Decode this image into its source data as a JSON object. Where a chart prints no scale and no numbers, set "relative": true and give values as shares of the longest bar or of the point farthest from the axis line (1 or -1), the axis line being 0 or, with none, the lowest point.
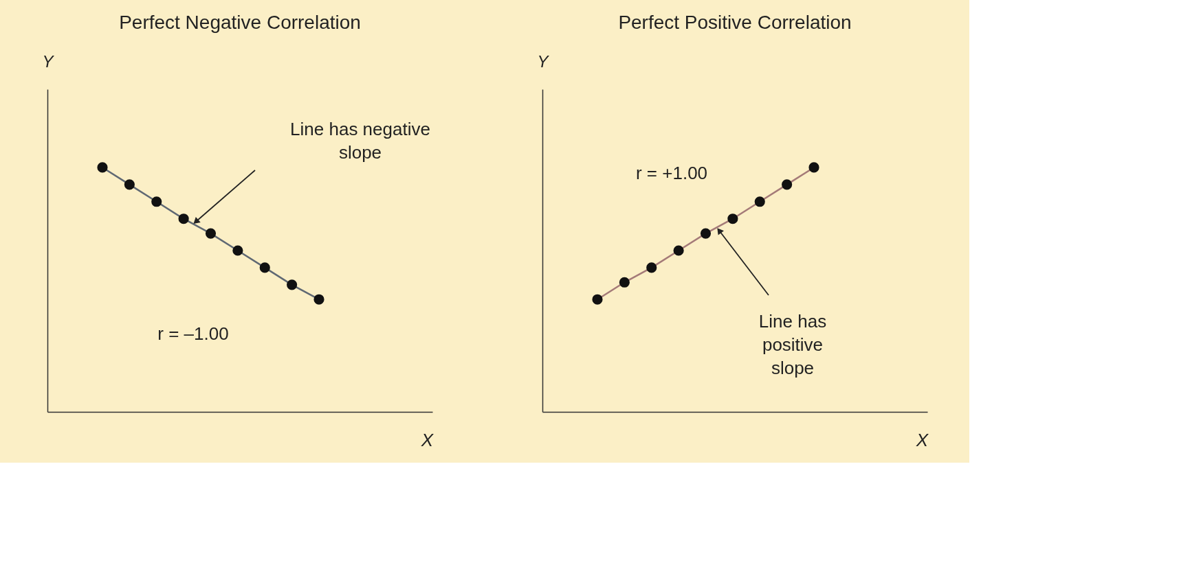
{
  "chart_data": [
    {
      "type": "line",
      "title": "Perfect Negative Correlation",
      "xlabel": "X",
      "ylabel": "Y",
      "relative": true,
      "marker": "circle",
      "line_style": "solid",
      "grid": false,
      "tick_labels": false,
      "categories": [
        null,
        null,
        null,
        null,
        null,
        null,
        null,
        null,
        null
      ],
      "series": [
        {
          "color": "#5f6873",
          "values": [
            1,
            0.93,
            0.86,
            0.79,
            0.73,
            0.66,
            0.59,
            0.52,
            0.46
          ]
        }
      ],
      "annotations": [
        "Line has negative slope",
        "r = –1.00"
      ]
    },
    {
      "type": "line",
      "title": "Perfect Positive Correlation",
      "xlabel": "X",
      "ylabel": "Y",
      "relative": true,
      "marker": "circle",
      "line_style": "solid",
      "grid": false,
      "tick_labels": false,
      "categories": [
        null,
        null,
        null,
        null,
        null,
        null,
        null,
        null,
        null
      ],
      "series": [
        {
          "color": "#a47a78",
          "values": [
            0.46,
            0.53,
            0.59,
            0.66,
            0.73,
            0.79,
            0.86,
            0.93,
            1
          ]
        }
      ],
      "annotations": [
        "Line has positive slope",
        "r = +1.00"
      ]
    }
  ]
}
